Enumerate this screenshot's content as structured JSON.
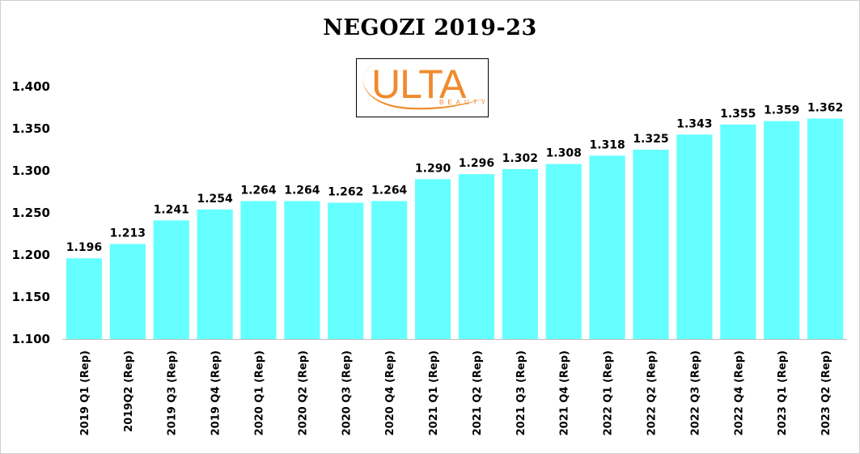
{
  "colors": {
    "bar": "#66ffff",
    "logo_orange": "#f08a2c"
  },
  "logo": {
    "wordmark": "ULTA",
    "tagline": "BEAUTY"
  },
  "chart_data": {
    "type": "bar",
    "title": "NEGOZI 2019-23",
    "xlabel": "",
    "ylabel": "",
    "ylim": [
      1.1,
      1.4
    ],
    "ytick_labels": [
      "1.100",
      "1.150",
      "1.200",
      "1.250",
      "1.300",
      "1.350",
      "1.400"
    ],
    "grid": false,
    "legend": "none",
    "categories": [
      "2019 Q1 (Rep)",
      "2019Q2 (Rep)",
      "2019 Q3 (Rep)",
      "2019 Q4 (Rep)",
      "2020 Q1 (Rep)",
      "2020 Q2 (Rep)",
      "2020 Q3 (Rep)",
      "2020 Q4 (Rep)",
      "2021 Q1 (Rep)",
      "2021 Q2 (Rep)",
      "2021 Q3 (Rep)",
      "2021 Q4 (Rep)",
      "2022 Q1 (Rep)",
      "2022 Q2 (Rep)",
      "2022 Q3 (Rep)",
      "2022 Q4 (Rep)",
      "2023 Q1 (Rep)",
      "2023 Q2 (Rep)"
    ],
    "values": [
      1.196,
      1.213,
      1.241,
      1.254,
      1.264,
      1.264,
      1.262,
      1.264,
      1.29,
      1.296,
      1.302,
      1.308,
      1.318,
      1.325,
      1.343,
      1.355,
      1.359,
      1.362
    ],
    "data_labels": [
      "1.196",
      "1.213",
      "1.241",
      "1.254",
      "1.264",
      "1.264",
      "1.262",
      "1.264",
      "1.290",
      "1.296",
      "1.302",
      "1.308",
      "1.318",
      "1.325",
      "1.343",
      "1.355",
      "1.359",
      "1.362"
    ]
  }
}
